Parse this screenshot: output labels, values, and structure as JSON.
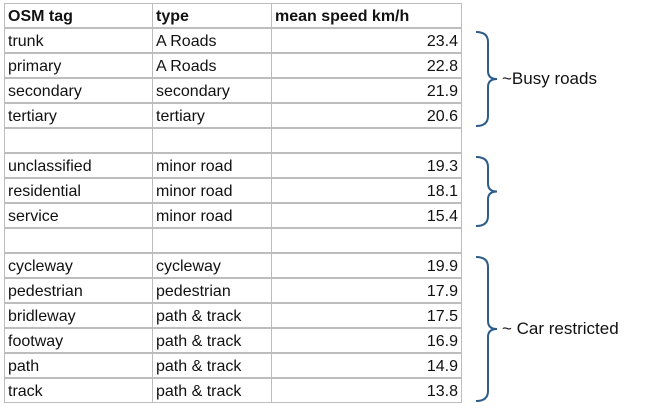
{
  "table": {
    "header": [
      "OSM tag",
      "type",
      "mean speed km/h"
    ],
    "groups": [
      {
        "rows": [
          [
            "trunk",
            "A Roads",
            "23.4"
          ],
          [
            "primary",
            "A Roads",
            "22.8"
          ],
          [
            "secondary",
            "secondary",
            "21.9"
          ],
          [
            "tertiary",
            "tertiary",
            "20.6"
          ]
        ],
        "annotation": "~Busy roads"
      },
      {
        "rows": [
          [
            "unclassified",
            "minor road",
            "19.3"
          ],
          [
            "residential",
            "minor road",
            "18.1"
          ],
          [
            "service",
            "minor road",
            "15.4"
          ]
        ]
      },
      {
        "rows": [
          [
            "cycleway",
            "cycleway",
            "19.9"
          ],
          [
            "pedestrian",
            "pedestrian",
            "17.9"
          ],
          [
            "bridleway",
            "path & track",
            "17.5"
          ],
          [
            "footway",
            "path & track",
            "16.9"
          ],
          [
            "path",
            "path & track",
            "14.9"
          ],
          [
            "track",
            "path & track",
            "13.8"
          ]
        ],
        "annotation": "~ Car restricted"
      }
    ]
  }
}
